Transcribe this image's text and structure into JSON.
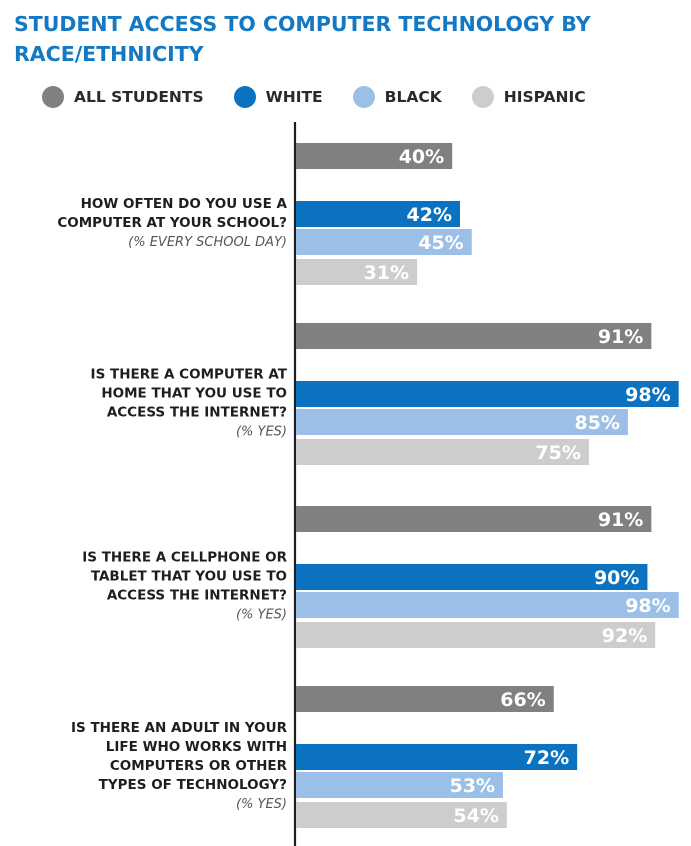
{
  "title": "STUDENT ACCESS TO COMPUTER TECHNOLOGY BY RACE/ETHNICITY",
  "colors": {
    "title": "#1479c4",
    "axis": "#1e1e1e"
  },
  "chart_data": {
    "type": "bar",
    "orientation": "horizontal",
    "title": "STUDENT ACCESS TO COMPUTER TECHNOLOGY BY RACE/ETHNICITY",
    "xlim": [
      0,
      100
    ],
    "unit": "%",
    "legend_position": "top",
    "grid": false,
    "series": [
      {
        "name": "ALL STUDENTS",
        "color": "#808083",
        "values": [
          40,
          91,
          91,
          66
        ]
      },
      {
        "name": "WHITE",
        "color": "#0a72c0",
        "values": [
          42,
          98,
          90,
          72
        ]
      },
      {
        "name": "BLACK",
        "color": "#9bbfe6",
        "values": [
          45,
          85,
          98,
          53
        ]
      },
      {
        "name": "HISPANIC",
        "color": "#cdcdcf",
        "values": [
          31,
          75,
          92,
          54
        ]
      }
    ],
    "categories": [
      {
        "lines": [
          "HOW OFTEN DO YOU USE A",
          "COMPUTER AT YOUR SCHOOL?"
        ],
        "sub": "(% EVERY SCHOOL DAY)"
      },
      {
        "lines": [
          "IS THERE A COMPUTER AT",
          "HOME THAT YOU USE TO",
          "ACCESS THE INTERNET?"
        ],
        "sub": "(% YES)"
      },
      {
        "lines": [
          "IS THERE A CELLPHONE OR",
          "TABLET THAT YOU USE TO",
          "ACCESS THE INTERNET?"
        ],
        "sub": "(% YES)"
      },
      {
        "lines": [
          "IS THERE AN ADULT IN YOUR",
          "LIFE WHO WORKS WITH",
          "COMPUTERS OR OTHER",
          "TYPES OF TECHNOLOGY?"
        ],
        "sub": "(% YES)"
      }
    ]
  }
}
